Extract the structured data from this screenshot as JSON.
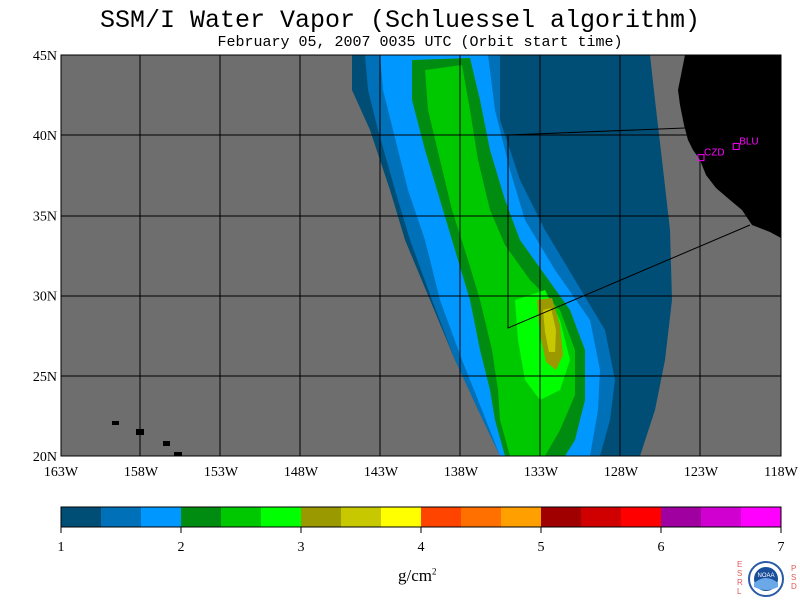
{
  "title": "SSM/I Water Vapor (Schluessel algorithm)",
  "subtitle": "February 05, 2007  0035 UTC  (Orbit start time)",
  "lat_labels": [
    "45N",
    "40N",
    "35N",
    "30N",
    "25N",
    "20N"
  ],
  "lon_labels": [
    "163W",
    "158W",
    "153W",
    "148W",
    "143W",
    "138W",
    "133W",
    "128W",
    "123W",
    "118W"
  ],
  "stations": [
    {
      "id": "CZD",
      "lon": -123.0,
      "lat": 38.6
    },
    {
      "id": "BLU",
      "lon": -120.8,
      "lat": 39.3
    }
  ],
  "colorbar": {
    "ticks": [
      "1",
      "2",
      "3",
      "4",
      "5",
      "6",
      "7"
    ],
    "unit": "g/cm",
    "unit_exp": "2",
    "colors": [
      "#004e76",
      "#0070b8",
      "#0098ff",
      "#008c10",
      "#00c800",
      "#00ff00",
      "#9a9a00",
      "#c8c800",
      "#ffff00",
      "#ff4400",
      "#ff7000",
      "#ffa000",
      "#a00000",
      "#d00000",
      "#ff0000",
      "#a000a0",
      "#d000d0",
      "#ff00ff"
    ]
  },
  "colors": {
    "land_missing": "#6e6e6e",
    "continent": "#000000",
    "station_marker": "#ff00ff"
  },
  "logo": {
    "left_letters": "ESRL",
    "right_letters": "PSD",
    "center": "NOAA"
  }
}
